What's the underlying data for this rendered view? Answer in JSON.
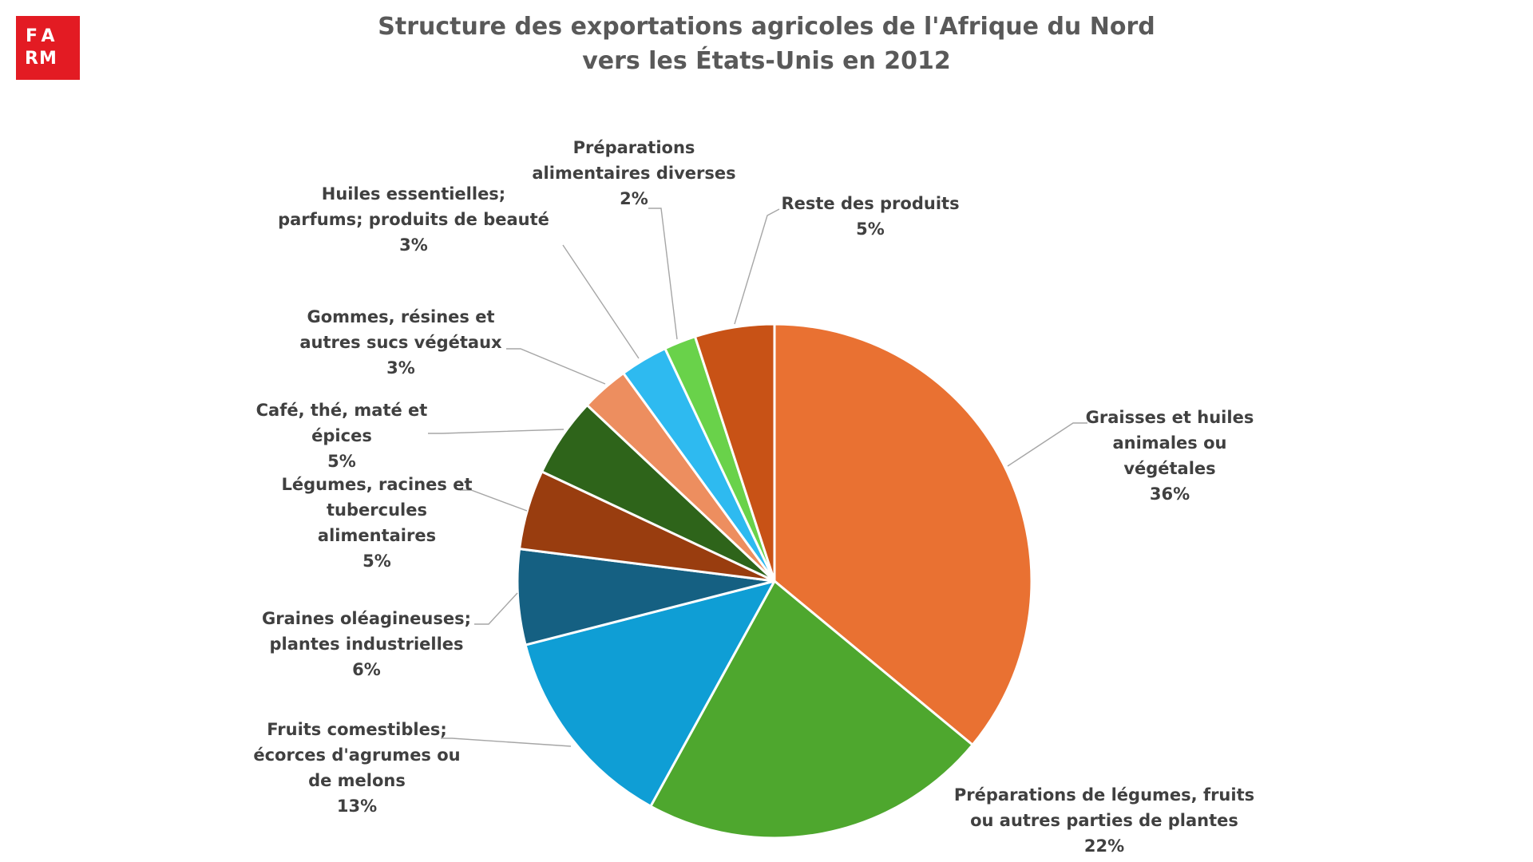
{
  "logo": {
    "letters": [
      "F",
      "A",
      "",
      "R",
      "M",
      ""
    ]
  },
  "title_lines": [
    "Structure des exportations agricoles de l'Afrique du Nord",
    "vers les États-Unis en 2012"
  ],
  "chart_data": {
    "type": "pie",
    "title": "Structure des exportations agricoles de l'Afrique du Nord vers les États-Unis en 2012",
    "unit": "%",
    "start_angle_deg": 0,
    "direction": "clockwise",
    "slices": [
      {
        "label_lines": [
          "Graisses et huiles",
          "animales ou",
          "végétales"
        ],
        "value": 36,
        "display": "36%",
        "color": "#e97132"
      },
      {
        "label_lines": [
          "Préparations de légumes, fruits",
          "ou autres parties de plantes"
        ],
        "value": 22,
        "display": "22%",
        "color": "#4ea72e"
      },
      {
        "label_lines": [
          "Fruits comestibles;",
          "écorces d'agrumes ou",
          "de melons"
        ],
        "value": 13,
        "display": "13%",
        "color": "#0f9ed5"
      },
      {
        "label_lines": [
          "Graines oléagineuses;",
          "plantes industrielles"
        ],
        "value": 6,
        "display": "6%",
        "color": "#156082"
      },
      {
        "label_lines": [
          "Légumes, racines et",
          "tubercules",
          "alimentaires"
        ],
        "value": 5,
        "display": "5%",
        "color": "#993d0f"
      },
      {
        "label_lines": [
          "Café, thé, maté et",
          "épices"
        ],
        "value": 5,
        "display": "5%",
        "color": "#2e641a"
      },
      {
        "label_lines": [
          "Gommes, résines et",
          "autres sucs végétaux"
        ],
        "value": 3,
        "display": "3%",
        "color": "#ed8e5f"
      },
      {
        "label_lines": [
          "Huiles essentielles;",
          "parfums; produits de beauté"
        ],
        "value": 3,
        "display": "3%",
        "color": "#2ebaf0"
      },
      {
        "label_lines": [
          "Préparations",
          "alimentaires diverses"
        ],
        "value": 2,
        "display": "2%",
        "color": "#69d24a"
      },
      {
        "label_lines": [
          "Reste des produits"
        ],
        "value": 5,
        "display": "5%",
        "color": "#c85216"
      }
    ]
  }
}
